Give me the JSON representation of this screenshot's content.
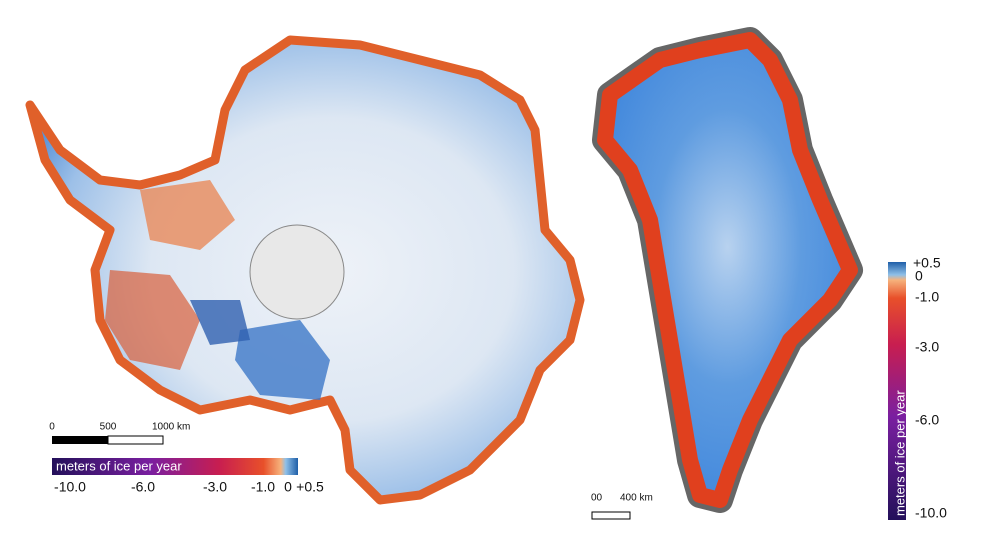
{
  "antarctica": {
    "scale_bar": {
      "labels": [
        "0",
        "500",
        "1000 km"
      ]
    },
    "legend": {
      "title": "meters of ice per year",
      "ticks": [
        "-10.0",
        "-6.0",
        "-3.0",
        "-1.0",
        "0",
        "+0.5"
      ]
    }
  },
  "greenland": {
    "scale_bar": {
      "labels": [
        "00",
        "400 km"
      ]
    },
    "legend": {
      "title": "meters of ice per year",
      "ticks": [
        "+0.5",
        "0",
        "-1.0",
        "-3.0",
        "-6.0",
        "-10.0"
      ]
    }
  }
}
